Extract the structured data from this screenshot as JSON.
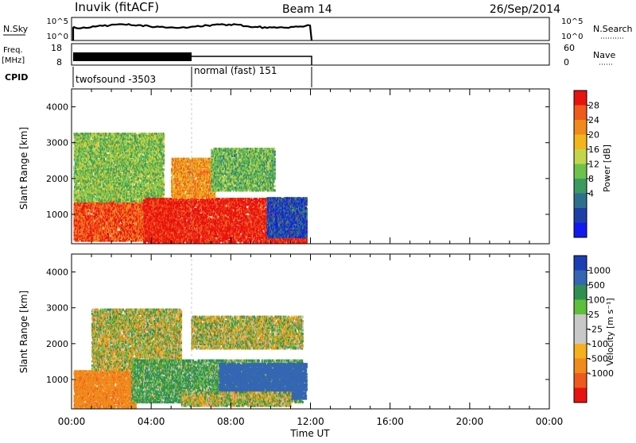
{
  "header": {
    "station": "Inuvik (fitACF)",
    "beam": "Beam 14",
    "date": "26/Sep/2014"
  },
  "nsky_panel": {
    "left_label": "N.Sky",
    "right_label": "N.Search",
    "left_ticks": [
      "10^5",
      "10^0"
    ],
    "right_ticks": [
      "10^5",
      "10^0"
    ]
  },
  "freq_panel": {
    "left_label_top": "Freq.",
    "left_label_unit": "[MHz]",
    "right_label": "Nave",
    "left_ticks": [
      "18",
      "8"
    ],
    "right_ticks": [
      "60",
      "0"
    ]
  },
  "cpid_panel": {
    "label": "CPID",
    "segments": [
      {
        "start_hour": 0,
        "end_hour": 6,
        "text": "twofsound -3503"
      },
      {
        "start_hour": 6,
        "end_hour": 12,
        "text": "normal (fast) 151"
      }
    ]
  },
  "chart_data": [
    {
      "type": "heatmap",
      "title": "Power",
      "ylabel": "Slant Range [km]",
      "xlabel": "Time UT",
      "x_range_hours": [
        0,
        24
      ],
      "ylim": [
        180,
        4500
      ],
      "y_ticks": [
        1000,
        2000,
        3000,
        4000
      ],
      "colorbar_label": "Power [dB]",
      "colorbar_ticks": [
        "28",
        "24",
        "20",
        "16",
        "12",
        "8",
        "4"
      ],
      "colorbar_colors": [
        "#e8130f",
        "#ef5a1d",
        "#f08a1b",
        "#f3b51c",
        "#c3d64b",
        "#6cc24a",
        "#3a9a5f",
        "#2e6f8d",
        "#1f3fa8",
        "#1219f0"
      ],
      "data_end_hour": 12,
      "echo_regions": [
        {
          "t0": 0.1,
          "t1": 5.0,
          "r0": 300,
          "r1": 1400,
          "value": 26
        },
        {
          "t0": 0.1,
          "t1": 4.6,
          "r0": 1400,
          "r1": 3300,
          "value": 14
        },
        {
          "t0": 3.6,
          "t1": 11.8,
          "r0": 260,
          "r1": 1500,
          "value": 29
        },
        {
          "t0": 5.0,
          "t1": 7.2,
          "r0": 1500,
          "r1": 2600,
          "value": 22
        },
        {
          "t0": 7.0,
          "t1": 10.2,
          "r0": 1700,
          "r1": 2900,
          "value": 13
        },
        {
          "t0": 9.8,
          "t1": 11.8,
          "r0": 400,
          "r1": 1500,
          "value": 5
        }
      ]
    },
    {
      "type": "heatmap",
      "title": "Velocity",
      "ylabel": "Slant Range [km]",
      "xlabel": "Time UT",
      "x_range_hours": [
        0,
        24
      ],
      "ylim": [
        180,
        4500
      ],
      "y_ticks": [
        1000,
        2000,
        3000,
        4000
      ],
      "colorbar_label": "Velocity [m s⁻¹]",
      "colorbar_ticks": [
        "1000",
        "500",
        "100",
        "25",
        "-25",
        "-100",
        "-500",
        "-1000"
      ],
      "colorbar_colors": [
        "#1a3fb5",
        "#3466b3",
        "#2f8f52",
        "#5cc03a",
        "#c8c8c8",
        "#c8c8c8",
        "#f5b01c",
        "#f08a1b",
        "#ee5a1e",
        "#e8130f"
      ],
      "data_end_hour": 12,
      "echo_regions": [
        {
          "t0": 0.1,
          "t1": 3.2,
          "r0": 260,
          "r1": 1300,
          "value": -350
        },
        {
          "t0": 1.0,
          "t1": 5.5,
          "r0": 1300,
          "r1": 3000,
          "value": 0
        },
        {
          "t0": 3.0,
          "t1": 11.6,
          "r0": 400,
          "r1": 1600,
          "value": 150
        },
        {
          "t0": 6.0,
          "t1": 11.6,
          "r0": 1900,
          "r1": 2800,
          "value": 0
        },
        {
          "t0": 7.4,
          "t1": 11.8,
          "r0": 500,
          "r1": 1500,
          "value": 800
        },
        {
          "t0": 5.5,
          "t1": 11.0,
          "r0": 300,
          "r1": 700,
          "value": 0
        }
      ]
    }
  ],
  "time_axis": {
    "label": "Time UT",
    "ticks": [
      "00:00",
      "04:00",
      "08:00",
      "12:00",
      "16:00",
      "20:00",
      "00:00"
    ]
  }
}
